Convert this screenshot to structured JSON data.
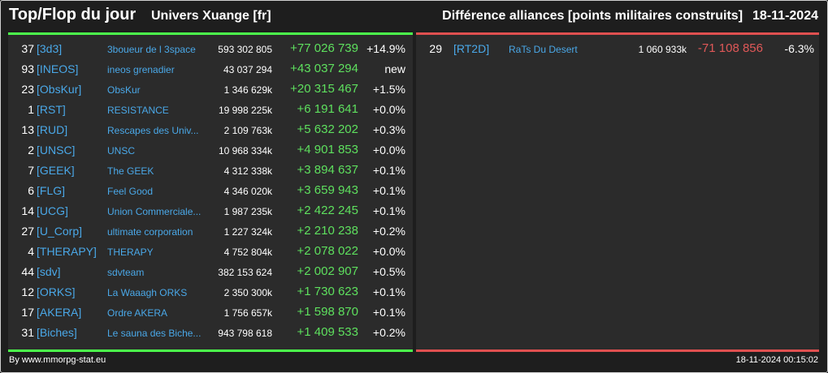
{
  "header": {
    "title": "Top/Flop du jour",
    "universe": "Univers Xuange [fr]",
    "metric": "Différence alliances [points militaires construits]",
    "date": "18-11-2024"
  },
  "colors": {
    "top_accent": "#4cff4c",
    "flop_accent": "#e05050",
    "link": "#4aa8e8",
    "positive": "#5ee05e",
    "negative": "#e05858"
  },
  "top": [
    {
      "rank": "37",
      "tag": "[3d3]",
      "name": "3boueur de l 3space",
      "points": "593 302 805",
      "diff": "+77 026 739",
      "pct": "+14.9%"
    },
    {
      "rank": "93",
      "tag": "[INEOS]",
      "name": "ineos grenadier",
      "points": "43 037 294",
      "diff": "+43 037 294",
      "pct": "new"
    },
    {
      "rank": "23",
      "tag": "[ObsKur]",
      "name": "ObsKur",
      "points": "1 346 629k",
      "diff": "+20 315 467",
      "pct": "+1.5%"
    },
    {
      "rank": "1",
      "tag": "[RST]",
      "name": "RESISTANCE",
      "points": "19 998 225k",
      "diff": "+6 191 641",
      "pct": "+0.0%"
    },
    {
      "rank": "13",
      "tag": "[RUD]",
      "name": "Rescapes des Univ...",
      "points": "2 109 763k",
      "diff": "+5 632 202",
      "pct": "+0.3%"
    },
    {
      "rank": "2",
      "tag": "[UNSC]",
      "name": "UNSC",
      "points": "10 968 334k",
      "diff": "+4 901 853",
      "pct": "+0.0%"
    },
    {
      "rank": "7",
      "tag": "[GEEK]",
      "name": "The GEEK",
      "points": "4 312 338k",
      "diff": "+3 894 637",
      "pct": "+0.1%"
    },
    {
      "rank": "6",
      "tag": "[FLG]",
      "name": "Feel Good",
      "points": "4 346 020k",
      "diff": "+3 659 943",
      "pct": "+0.1%"
    },
    {
      "rank": "14",
      "tag": "[UCG]",
      "name": "Union Commerciale...",
      "points": "1 987 235k",
      "diff": "+2 422 245",
      "pct": "+0.1%"
    },
    {
      "rank": "27",
      "tag": "[U_Corp]",
      "name": "ultimate corporation",
      "points": "1 227 324k",
      "diff": "+2 210 238",
      "pct": "+0.2%"
    },
    {
      "rank": "4",
      "tag": "[THERAPY]",
      "name": "THERAPY",
      "points": "4 752 804k",
      "diff": "+2 078 022",
      "pct": "+0.0%"
    },
    {
      "rank": "44",
      "tag": "[sdv]",
      "name": "sdvteam",
      "points": "382 153 624",
      "diff": "+2 002 907",
      "pct": "+0.5%"
    },
    {
      "rank": "12",
      "tag": "[ORKS]",
      "name": "La Waaagh ORKS",
      "points": "2 350 300k",
      "diff": "+1 730 623",
      "pct": "+0.1%"
    },
    {
      "rank": "17",
      "tag": "[AKERA]",
      "name": "Ordre AKERA",
      "points": "1 756 657k",
      "diff": "+1 598 870",
      "pct": "+0.1%"
    },
    {
      "rank": "31",
      "tag": "[Biches]",
      "name": "Le sauna des Biche...",
      "points": "943 798 618",
      "diff": "+1 409 533",
      "pct": "+0.2%"
    }
  ],
  "flop": [
    {
      "rank": "29",
      "tag": "[RT2D]",
      "name": "RaTs Du Desert",
      "points": "1 060 933k",
      "diff": "-71 108 856",
      "pct": "-6.3%"
    }
  ],
  "footer": {
    "source": "By www.mmorpg-stat.eu",
    "timestamp": "18-11-2024 00:15:02"
  }
}
